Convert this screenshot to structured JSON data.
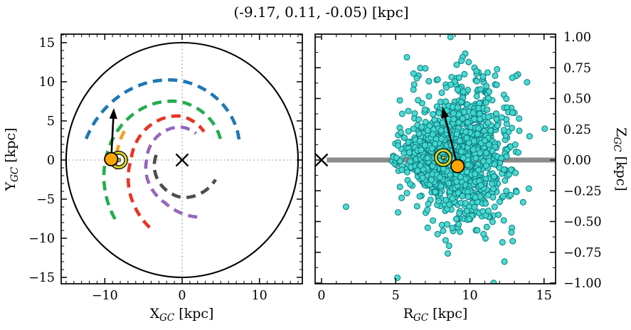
{
  "title": "(-9.17, 0.11, -0.05) [kpc]",
  "colors": {
    "frame": "#000000",
    "crosshair": "#9a9a9a",
    "galaxy_circle": "#000000",
    "midplane_bar": "#8c8c8c",
    "scatter_fill": "#43d8ce",
    "scatter_edge": "#0d7f84",
    "star_fill": "#ffa500",
    "sun_ring": "#d6d62a",
    "arrow": "#000000"
  },
  "chart_data": [
    {
      "id": "left-panel",
      "type": "scatter",
      "description": "Face-on Galactocentric map with spiral arms, Sun symbol, star position and velocity arrow",
      "xlabel": {
        "pre": "X",
        "sub": "GC",
        "post": " [kpc]"
      },
      "ylabel": {
        "pre": "Y",
        "sub": "GC",
        "post": " [kpc]"
      },
      "xlim": [
        -15.6,
        15.6
      ],
      "ylim": [
        -15.8,
        16.1
      ],
      "xticks": [
        {
          "v": -10,
          "label": "−10"
        },
        {
          "v": 0,
          "label": "0"
        },
        {
          "v": 10,
          "label": "10"
        }
      ],
      "yticks": [
        {
          "v": 15,
          "label": "15"
        },
        {
          "v": 10,
          "label": "10"
        },
        {
          "v": 5,
          "label": "5"
        },
        {
          "v": 0,
          "label": "0"
        },
        {
          "v": -5,
          "label": "−5"
        },
        {
          "v": -10,
          "label": "−10"
        },
        {
          "v": -15,
          "label": "−15"
        }
      ],
      "minor_step_x": 1,
      "minor_step_y": 1,
      "crosshair": true,
      "galaxy_circle": {
        "cx": 0,
        "cy": 0,
        "r": 15
      },
      "galactic_center_marker": {
        "x": 0,
        "y": 0,
        "marker": "x"
      },
      "sun": {
        "x": -8.2,
        "y": 0
      },
      "star_position": {
        "x": -9.17,
        "y": 0.11
      },
      "velocity_arrow": {
        "from": [
          -9.17,
          0.11
        ],
        "to": [
          -8.83,
          6.64
        ]
      },
      "spiral_arms": [
        {
          "name": "arm-blue",
          "color": "#1f77b4",
          "points_theta_r": [
            [
              167.7,
              12.7
            ],
            [
              90,
              10.1
            ],
            [
              17.3,
              7.75
            ]
          ]
        },
        {
          "name": "arm-green",
          "color": "#25ab4f",
          "points_theta_r": [
            [
              221,
              11.5
            ],
            [
              180,
              9.9
            ],
            [
              90,
              7.4
            ],
            [
              27,
              5.6
            ]
          ]
        },
        {
          "name": "arm-orange",
          "color": "#ff9d1e",
          "points_theta_r": [
            [
              188,
              8.6
            ],
            [
              150,
              8.3
            ]
          ]
        },
        {
          "name": "arm-red",
          "color": "#ea3423",
          "points_theta_r": [
            [
              244,
              9.6
            ],
            [
              180,
              6.6
            ],
            [
              90,
              5.6
            ],
            [
              52,
              4.6
            ]
          ]
        },
        {
          "name": "arm-purple",
          "color": "#9467bd",
          "points_theta_r": [
            [
              285,
              7.55
            ],
            [
              248,
              5.9
            ],
            [
              180,
              4.6
            ],
            [
              90,
              4.2
            ],
            [
              62,
              3.85
            ]
          ]
        },
        {
          "name": "arm-gray",
          "color": "#4d4d4d",
          "points_theta_r": [
            [
              169,
              3.4
            ],
            [
              270,
              4.8
            ],
            [
              330,
              5.0
            ]
          ]
        }
      ]
    },
    {
      "id": "right-panel",
      "type": "scatter",
      "description": "Galactocentric radius vs height: cyan mock-star cloud, midplane bar, Sun symbol, star position and velocity arrow",
      "xlabel": {
        "pre": "R",
        "sub": "GC",
        "post": " [kpc]"
      },
      "ylabel": {
        "pre": "Z",
        "sub": "GC",
        "post": " [kpc]"
      },
      "xlim": [
        -0.45,
        15.8
      ],
      "ylim": [
        -1.006,
        1.023
      ],
      "xticks": [
        {
          "v": 0,
          "label": "0"
        },
        {
          "v": 5,
          "label": "5"
        },
        {
          "v": 10,
          "label": "10"
        },
        {
          "v": 15,
          "label": "15"
        }
      ],
      "yticks": [
        {
          "v": 1.0,
          "label": "1.00"
        },
        {
          "v": 0.75,
          "label": "0.75"
        },
        {
          "v": 0.5,
          "label": "0.50"
        },
        {
          "v": 0.25,
          "label": "0.25"
        },
        {
          "v": 0.0,
          "label": "0.00"
        },
        {
          "v": -0.25,
          "label": "−0.25"
        },
        {
          "v": -0.5,
          "label": "−0.50"
        },
        {
          "v": -0.75,
          "label": "−0.75"
        },
        {
          "v": -1.0,
          "label": "−1.00"
        }
      ],
      "minor_step_x": 1,
      "minor_step_y": 0.125,
      "midplane_bar": {
        "from_r": 0.35,
        "to_r": 15.8,
        "z": 0
      },
      "galactic_center_marker": {
        "x": 0,
        "y": 0,
        "marker": "x"
      },
      "sun": {
        "x": 8.2,
        "y": 0.02
      },
      "star_position": {
        "x": 9.17,
        "y": -0.05
      },
      "velocity_arrow": {
        "from": [
          9.17,
          -0.05
        ],
        "to": [
          8.15,
          0.43
        ]
      },
      "scatter_cloud": {
        "n": 1400,
        "seed": 42,
        "r_mean": 9.0,
        "r_sigma": 1.75,
        "r_clip": [
          4.2,
          15.6
        ],
        "z_mean": 0.02,
        "z_sigma_base": 0.03,
        "z_sigma_slope": 0.036,
        "flare_fraction": 0.25,
        "flare_z_mean": 0.07,
        "flare_sigma": 0.36,
        "z_clip": [
          -1.0,
          1.0
        ],
        "outliers": [
          [
            1.65,
            -0.38
          ]
        ]
      }
    }
  ]
}
